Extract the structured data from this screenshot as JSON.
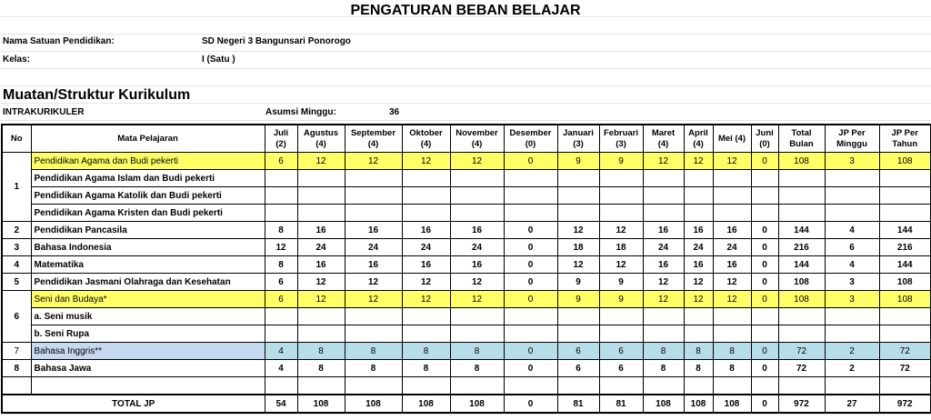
{
  "header": {
    "title": "PENGATURAN BEBAN BELAJAR"
  },
  "info": [
    {
      "label": "Nama Satuan Pendidikan:",
      "value": "SD Negeri 3 Bangunsari Ponorogo"
    },
    {
      "label": "Kelas:",
      "value": "I (Satu )"
    }
  ],
  "section": {
    "title": "Muatan/Struktur Kurikulum",
    "subtitle": "INTRAKURIKULER",
    "weeks_label": "Asumsi Minggu:",
    "weeks": 36
  },
  "table": {
    "columns": {
      "no": "No",
      "subject": "Mata Pelajaran",
      "months": [
        {
          "name": "Juli",
          "weeks": "(2)"
        },
        {
          "name": "Agustus",
          "weeks": "(4)"
        },
        {
          "name": "September",
          "weeks": "(4)"
        },
        {
          "name": "Oktober",
          "weeks": "(4)"
        },
        {
          "name": "November",
          "weeks": "(4)"
        },
        {
          "name": "Desember",
          "weeks": "(0)"
        },
        {
          "name": "Januari",
          "weeks": "(3)"
        },
        {
          "name": "Februari",
          "weeks": "(3)"
        },
        {
          "name": "Maret",
          "weeks": "(4)"
        },
        {
          "name": "April",
          "weeks": "(4)"
        },
        {
          "name": "Mei (4)"
        },
        {
          "name": "Juni",
          "weeks": "(0)"
        }
      ],
      "summary": [
        "Total Bulan",
        "JP Per Minggu",
        "JP Per Tahun"
      ]
    },
    "rows": [
      {
        "no": 1,
        "name": "Pendidikan Agama dan Budi pekerti",
        "values": [
          6,
          12,
          12,
          12,
          12,
          0,
          9,
          9,
          12,
          12,
          12,
          0,
          108,
          3,
          108
        ],
        "highlight": "yellow",
        "sub": [
          "Pendidikan Agama Islam dan Budi pekerti",
          "Pendidikan Agama Katolik dan Budi pekerti",
          "Pendidikan Agama Kristen dan Budi pekerti"
        ]
      },
      {
        "no": 2,
        "name": "Pendidikan Pancasila",
        "values": [
          8,
          16,
          16,
          16,
          16,
          0,
          12,
          12,
          16,
          16,
          16,
          0,
          144,
          4,
          144
        ]
      },
      {
        "no": 3,
        "name": "Bahasa Indonesia",
        "values": [
          12,
          24,
          24,
          24,
          24,
          0,
          18,
          18,
          24,
          24,
          24,
          0,
          216,
          6,
          216
        ]
      },
      {
        "no": 4,
        "name": "Matematika",
        "values": [
          8,
          16,
          16,
          16,
          16,
          0,
          12,
          12,
          16,
          16,
          16,
          0,
          144,
          4,
          144
        ]
      },
      {
        "no": 5,
        "name": "Pendidikan Jasmani Olahraga dan Kesehatan",
        "values": [
          6,
          12,
          12,
          12,
          12,
          0,
          9,
          9,
          12,
          12,
          12,
          0,
          108,
          3,
          108
        ]
      },
      {
        "no": 6,
        "name": "Seni dan Budaya*",
        "values": [
          6,
          12,
          12,
          12,
          12,
          0,
          9,
          9,
          12,
          12,
          12,
          0,
          108,
          3,
          108
        ],
        "highlight": "yellow",
        "sub": [
          "a. Seni musik",
          "b. Seni Rupa"
        ]
      },
      {
        "no": 7,
        "name": "Bahasa Inggris**",
        "values": [
          4,
          8,
          8,
          8,
          8,
          0,
          6,
          6,
          8,
          8,
          8,
          0,
          72,
          2,
          72
        ],
        "highlight": "blue"
      },
      {
        "no": 8,
        "name": "Bahasa Jawa",
        "values": [
          4,
          8,
          8,
          8,
          8,
          0,
          6,
          6,
          8,
          8,
          8,
          0,
          72,
          2,
          72
        ]
      }
    ],
    "total": {
      "label": "TOTAL JP",
      "values": [
        54,
        108,
        108,
        108,
        108,
        0,
        81,
        81,
        108,
        108,
        108,
        0,
        972,
        27,
        972
      ]
    }
  }
}
